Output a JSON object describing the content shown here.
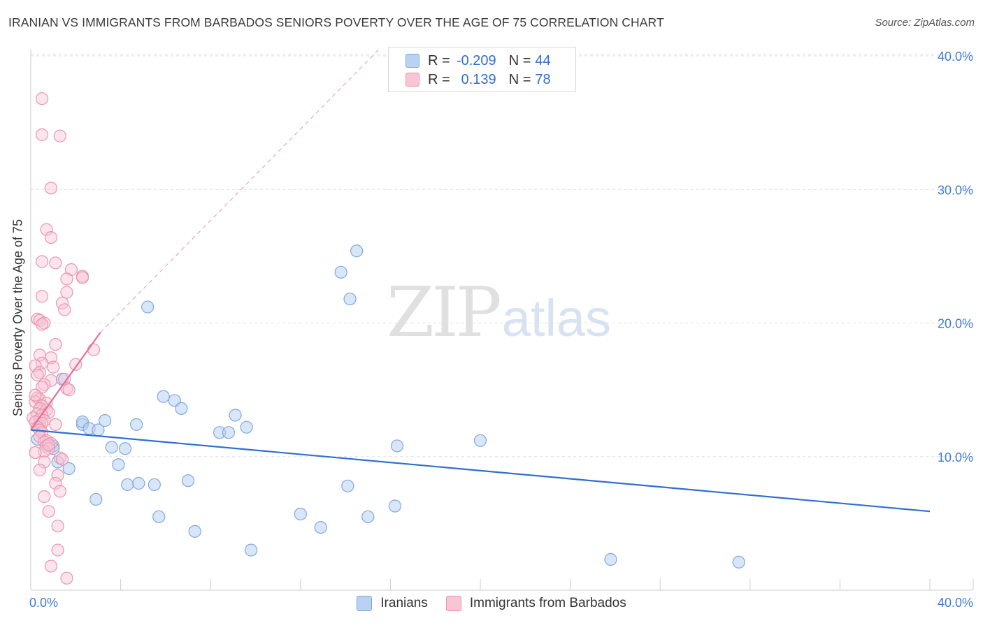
{
  "header": {
    "title": "IRANIAN VS IMMIGRANTS FROM BARBADOS SENIORS POVERTY OVER THE AGE OF 75 CORRELATION CHART",
    "source": "Source: ZipAtlas.com"
  },
  "watermark": {
    "zip": "ZIP",
    "atlas": "atlas"
  },
  "colors": {
    "blue": "#2f6fd1",
    "blue_fill": "#b9d1f2",
    "blue_edge": "#7fa8e0",
    "pink": "#e56e95",
    "pink_fill": "#f7c5d4",
    "pink_edge": "#eb94b1",
    "grid": "#dddddd",
    "tick_label": "#3f7bd6"
  },
  "legend_top": {
    "rows": [
      {
        "r_label": "R = ",
        "r_value": "-0.209",
        "n_label": "N = ",
        "n_value": "44"
      },
      {
        "r_label": "R = ",
        "r_value": "0.139",
        "n_label": "N = ",
        "n_value": "78"
      }
    ]
  },
  "legend_bottom": {
    "items": [
      "Iranians",
      "Immigrants from Barbados"
    ]
  },
  "chart_data": {
    "type": "scatter",
    "title": "IRANIAN VS IMMIGRANTS FROM BARBADOS SENIORS POVERTY OVER THE AGE OF 75 CORRELATION CHART",
    "xlabel": "",
    "ylabel": "Seniors Poverty Over the Age of 75",
    "xlim": [
      0,
      40
    ],
    "ylim": [
      0,
      40
    ],
    "x_tick_labels": [
      "0.0%",
      "40.0%"
    ],
    "y_ticks": [
      10,
      20,
      30,
      40
    ],
    "y_tick_labels": [
      "10.0%",
      "20.0%",
      "30.0%",
      "40.0%"
    ],
    "grid": true,
    "series": [
      {
        "name": "Iranians",
        "r": -0.209,
        "n": 44,
        "trend": {
          "x": [
            0,
            40
          ],
          "y": [
            12.0,
            5.9
          ]
        },
        "points": [
          [
            0.3,
            11.3
          ],
          [
            0.4,
            12.5
          ],
          [
            1.0,
            10.8
          ],
          [
            1.0,
            10.6
          ],
          [
            1.2,
            9.6
          ],
          [
            1.7,
            9.1
          ],
          [
            1.4,
            15.8
          ],
          [
            2.3,
            12.4
          ],
          [
            2.3,
            12.6
          ],
          [
            2.6,
            12.1
          ],
          [
            3.0,
            12.0
          ],
          [
            3.3,
            12.7
          ],
          [
            2.9,
            6.8
          ],
          [
            3.6,
            10.7
          ],
          [
            3.9,
            9.4
          ],
          [
            4.2,
            10.6
          ],
          [
            4.3,
            7.9
          ],
          [
            4.7,
            12.4
          ],
          [
            4.8,
            8.0
          ],
          [
            5.2,
            21.2
          ],
          [
            5.5,
            7.9
          ],
          [
            5.7,
            5.5
          ],
          [
            5.9,
            14.5
          ],
          [
            6.4,
            14.2
          ],
          [
            6.7,
            13.6
          ],
          [
            7.0,
            8.2
          ],
          [
            7.3,
            4.4
          ],
          [
            8.4,
            11.8
          ],
          [
            8.8,
            11.8
          ],
          [
            9.1,
            13.1
          ],
          [
            9.6,
            12.2
          ],
          [
            9.8,
            3.0
          ],
          [
            12.0,
            5.7
          ],
          [
            12.9,
            4.7
          ],
          [
            13.8,
            23.8
          ],
          [
            14.5,
            25.4
          ],
          [
            14.2,
            21.8
          ],
          [
            14.1,
            7.8
          ],
          [
            15.0,
            5.5
          ],
          [
            16.2,
            6.3
          ],
          [
            16.3,
            10.8
          ],
          [
            20.0,
            11.2
          ],
          [
            25.8,
            2.3
          ],
          [
            31.5,
            2.1
          ]
        ]
      },
      {
        "name": "Immigrants from Barbados",
        "r": 0.139,
        "n": 78,
        "trend": {
          "x": [
            0,
            3.1
          ],
          "y": [
            12.0,
            19.3
          ]
        },
        "trend_extension": {
          "x": [
            3.1,
            15.5
          ],
          "y": [
            19.3,
            40.5
          ]
        },
        "points": [
          [
            0.5,
            36.8
          ],
          [
            0.5,
            34.1
          ],
          [
            1.3,
            34.0
          ],
          [
            0.9,
            30.1
          ],
          [
            0.7,
            27.0
          ],
          [
            0.9,
            26.4
          ],
          [
            0.5,
            24.6
          ],
          [
            1.1,
            24.5
          ],
          [
            1.8,
            24.0
          ],
          [
            2.3,
            23.5
          ],
          [
            2.3,
            23.4
          ],
          [
            1.6,
            23.3
          ],
          [
            1.6,
            22.3
          ],
          [
            0.5,
            22.0
          ],
          [
            1.4,
            21.5
          ],
          [
            1.5,
            21.0
          ],
          [
            0.3,
            20.3
          ],
          [
            0.4,
            20.2
          ],
          [
            0.6,
            20.0
          ],
          [
            0.5,
            19.9
          ],
          [
            1.1,
            18.4
          ],
          [
            2.8,
            18.0
          ],
          [
            0.4,
            17.6
          ],
          [
            0.9,
            17.4
          ],
          [
            0.5,
            17.0
          ],
          [
            2.0,
            16.9
          ],
          [
            0.2,
            16.8
          ],
          [
            1.0,
            16.7
          ],
          [
            0.4,
            16.3
          ],
          [
            0.3,
            16.1
          ],
          [
            1.5,
            15.8
          ],
          [
            0.9,
            15.7
          ],
          [
            0.6,
            15.4
          ],
          [
            0.5,
            15.2
          ],
          [
            1.6,
            15.1
          ],
          [
            1.7,
            15.0
          ],
          [
            0.3,
            14.4
          ],
          [
            0.4,
            14.3
          ],
          [
            0.2,
            14.1
          ],
          [
            0.7,
            14.0
          ],
          [
            0.5,
            13.8
          ],
          [
            0.4,
            13.6
          ],
          [
            0.7,
            13.5
          ],
          [
            0.8,
            13.3
          ],
          [
            0.3,
            13.2
          ],
          [
            0.5,
            13.1
          ],
          [
            0.1,
            12.9
          ],
          [
            0.4,
            12.8
          ],
          [
            0.6,
            12.7
          ],
          [
            0.2,
            12.6
          ],
          [
            0.5,
            12.5
          ],
          [
            1.1,
            12.4
          ],
          [
            0.3,
            12.2
          ],
          [
            0.4,
            12.0
          ],
          [
            0.5,
            11.8
          ],
          [
            0.4,
            11.5
          ],
          [
            0.7,
            11.2
          ],
          [
            0.6,
            11.1
          ],
          [
            0.9,
            11.0
          ],
          [
            0.7,
            10.8
          ],
          [
            0.8,
            10.6
          ],
          [
            0.6,
            10.4
          ],
          [
            0.2,
            10.3
          ],
          [
            1.3,
            9.9
          ],
          [
            0.6,
            9.6
          ],
          [
            1.4,
            9.8
          ],
          [
            1.2,
            8.6
          ],
          [
            1.1,
            8.0
          ],
          [
            1.3,
            7.4
          ],
          [
            0.6,
            7.0
          ],
          [
            0.8,
            5.9
          ],
          [
            1.2,
            4.8
          ],
          [
            1.2,
            3.0
          ],
          [
            0.9,
            1.8
          ],
          [
            1.6,
            0.9
          ],
          [
            0.4,
            9.0
          ],
          [
            0.8,
            10.9
          ],
          [
            0.2,
            14.6
          ]
        ]
      }
    ]
  }
}
